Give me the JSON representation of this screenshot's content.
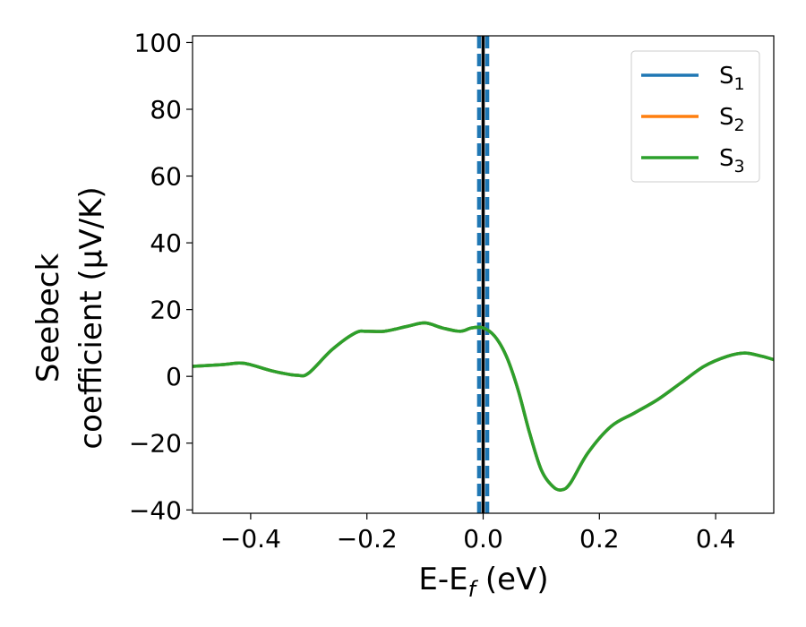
{
  "chart_data": {
    "type": "line",
    "xlabel": "E-E",
    "xlabel_sub": "f",
    "xlabel_unit": " (eV)",
    "ylabel_line1": "Seebeck",
    "ylabel_line2": "coefficient  (μV/K)",
    "xlim": [
      -0.5,
      0.5
    ],
    "ylim": [
      -41,
      102
    ],
    "xticks": [
      -0.4,
      -0.2,
      0.0,
      0.2,
      0.4
    ],
    "xtick_labels": [
      "−0.4",
      "−0.2",
      "0.0",
      "0.2",
      "0.4"
    ],
    "yticks": [
      -40,
      -20,
      0,
      20,
      40,
      60,
      80,
      100
    ],
    "ytick_labels": [
      "−40",
      "−20",
      "0",
      "20",
      "40",
      "60",
      "80",
      "100"
    ],
    "grid": false,
    "legend_position": "top-right",
    "vertical_lines": [
      {
        "x": -0.007,
        "style": "dashed",
        "color": "#1f77b4"
      },
      {
        "x": 0.007,
        "style": "dashed",
        "color": "#1f77b4"
      },
      {
        "x": 0.0,
        "style": "solid",
        "color": "#000000"
      }
    ],
    "x": [
      -0.5,
      -0.45,
      -0.42,
      -0.4,
      -0.36,
      -0.32,
      -0.3,
      -0.26,
      -0.22,
      -0.2,
      -0.17,
      -0.13,
      -0.1,
      -0.07,
      -0.04,
      -0.02,
      0.0,
      0.02,
      0.04,
      0.06,
      0.08,
      0.1,
      0.12,
      0.135,
      0.15,
      0.18,
      0.22,
      0.26,
      0.3,
      0.34,
      0.38,
      0.42,
      0.45,
      0.48,
      0.5
    ],
    "series": [
      {
        "name": "S",
        "sub": "1",
        "color": "#1f77b4",
        "values": [
          3,
          3.5,
          4,
          3.5,
          1.5,
          0.3,
          1,
          8,
          13,
          13.5,
          13.5,
          15,
          16,
          14.5,
          13.5,
          14.5,
          14.5,
          12,
          6,
          -4,
          -17,
          -28,
          -33,
          -34,
          -32,
          -23,
          -15,
          -11,
          -7,
          -2,
          3,
          6,
          7,
          6,
          5
        ]
      },
      {
        "name": "S",
        "sub": "2",
        "color": "#ff7f0e",
        "values": [
          3,
          3.5,
          4,
          3.5,
          1.5,
          0.3,
          1,
          8,
          13,
          13.5,
          13.5,
          15,
          16,
          14.5,
          13.5,
          14.5,
          14.5,
          12,
          6,
          -4,
          -17,
          -28,
          -33,
          -34,
          -32,
          -23,
          -15,
          -11,
          -7,
          -2,
          3,
          6,
          7,
          6,
          5
        ]
      },
      {
        "name": "S",
        "sub": "3",
        "color": "#2ca02c",
        "values": [
          3,
          3.5,
          4,
          3.5,
          1.5,
          0.3,
          1,
          8,
          13,
          13.5,
          13.5,
          15,
          16,
          14.5,
          13.5,
          14.5,
          14.5,
          12,
          6,
          -4,
          -17,
          -28,
          -33,
          -34,
          -32,
          -23,
          -15,
          -11,
          -7,
          -2,
          3,
          6,
          7,
          6,
          5
        ]
      }
    ]
  }
}
